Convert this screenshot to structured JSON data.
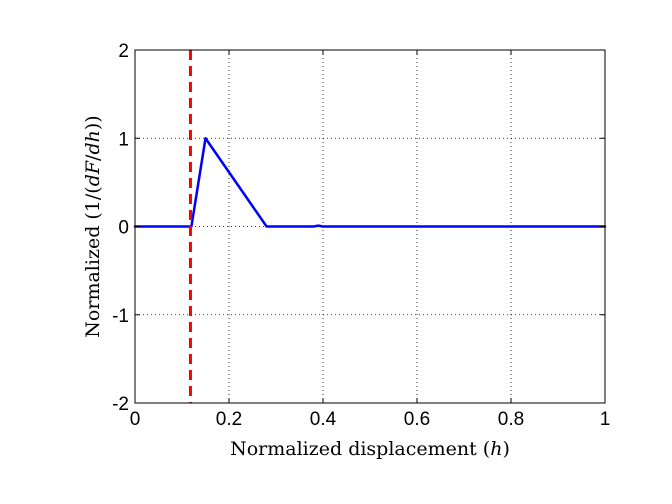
{
  "chart_data": {
    "type": "line",
    "xlabel_parts": [
      "Normalized displacement (",
      "h",
      ")"
    ],
    "ylabel_parts": [
      "Normalized (1/(",
      "dF",
      "/",
      "dh",
      "))"
    ],
    "xlim": [
      0,
      1
    ],
    "ylim": [
      -2,
      2
    ],
    "x_ticks": [
      0,
      0.2,
      0.4,
      0.6,
      0.8,
      1
    ],
    "x_tick_labels": [
      "0",
      "0.2",
      "0.4",
      "0.6",
      "0.8",
      "1"
    ],
    "y_ticks": [
      -2,
      -1,
      0,
      1,
      2
    ],
    "y_tick_labels": [
      "-2",
      "-1",
      "0",
      "1",
      "2"
    ],
    "grid": true,
    "series": [
      {
        "color": "#0000ff",
        "style": "solid",
        "points": [
          [
            0,
            0.0
          ],
          [
            0.12,
            0.0
          ],
          [
            0.15,
            1.0
          ],
          [
            0.28,
            0.0
          ],
          [
            0.38,
            0.0
          ],
          [
            0.39,
            0.01
          ],
          [
            0.4,
            0.0
          ],
          [
            1.0,
            0.0
          ]
        ]
      }
    ],
    "vertical_line": {
      "x": 0.118,
      "color": "#ff0000",
      "style": "dashed"
    }
  }
}
